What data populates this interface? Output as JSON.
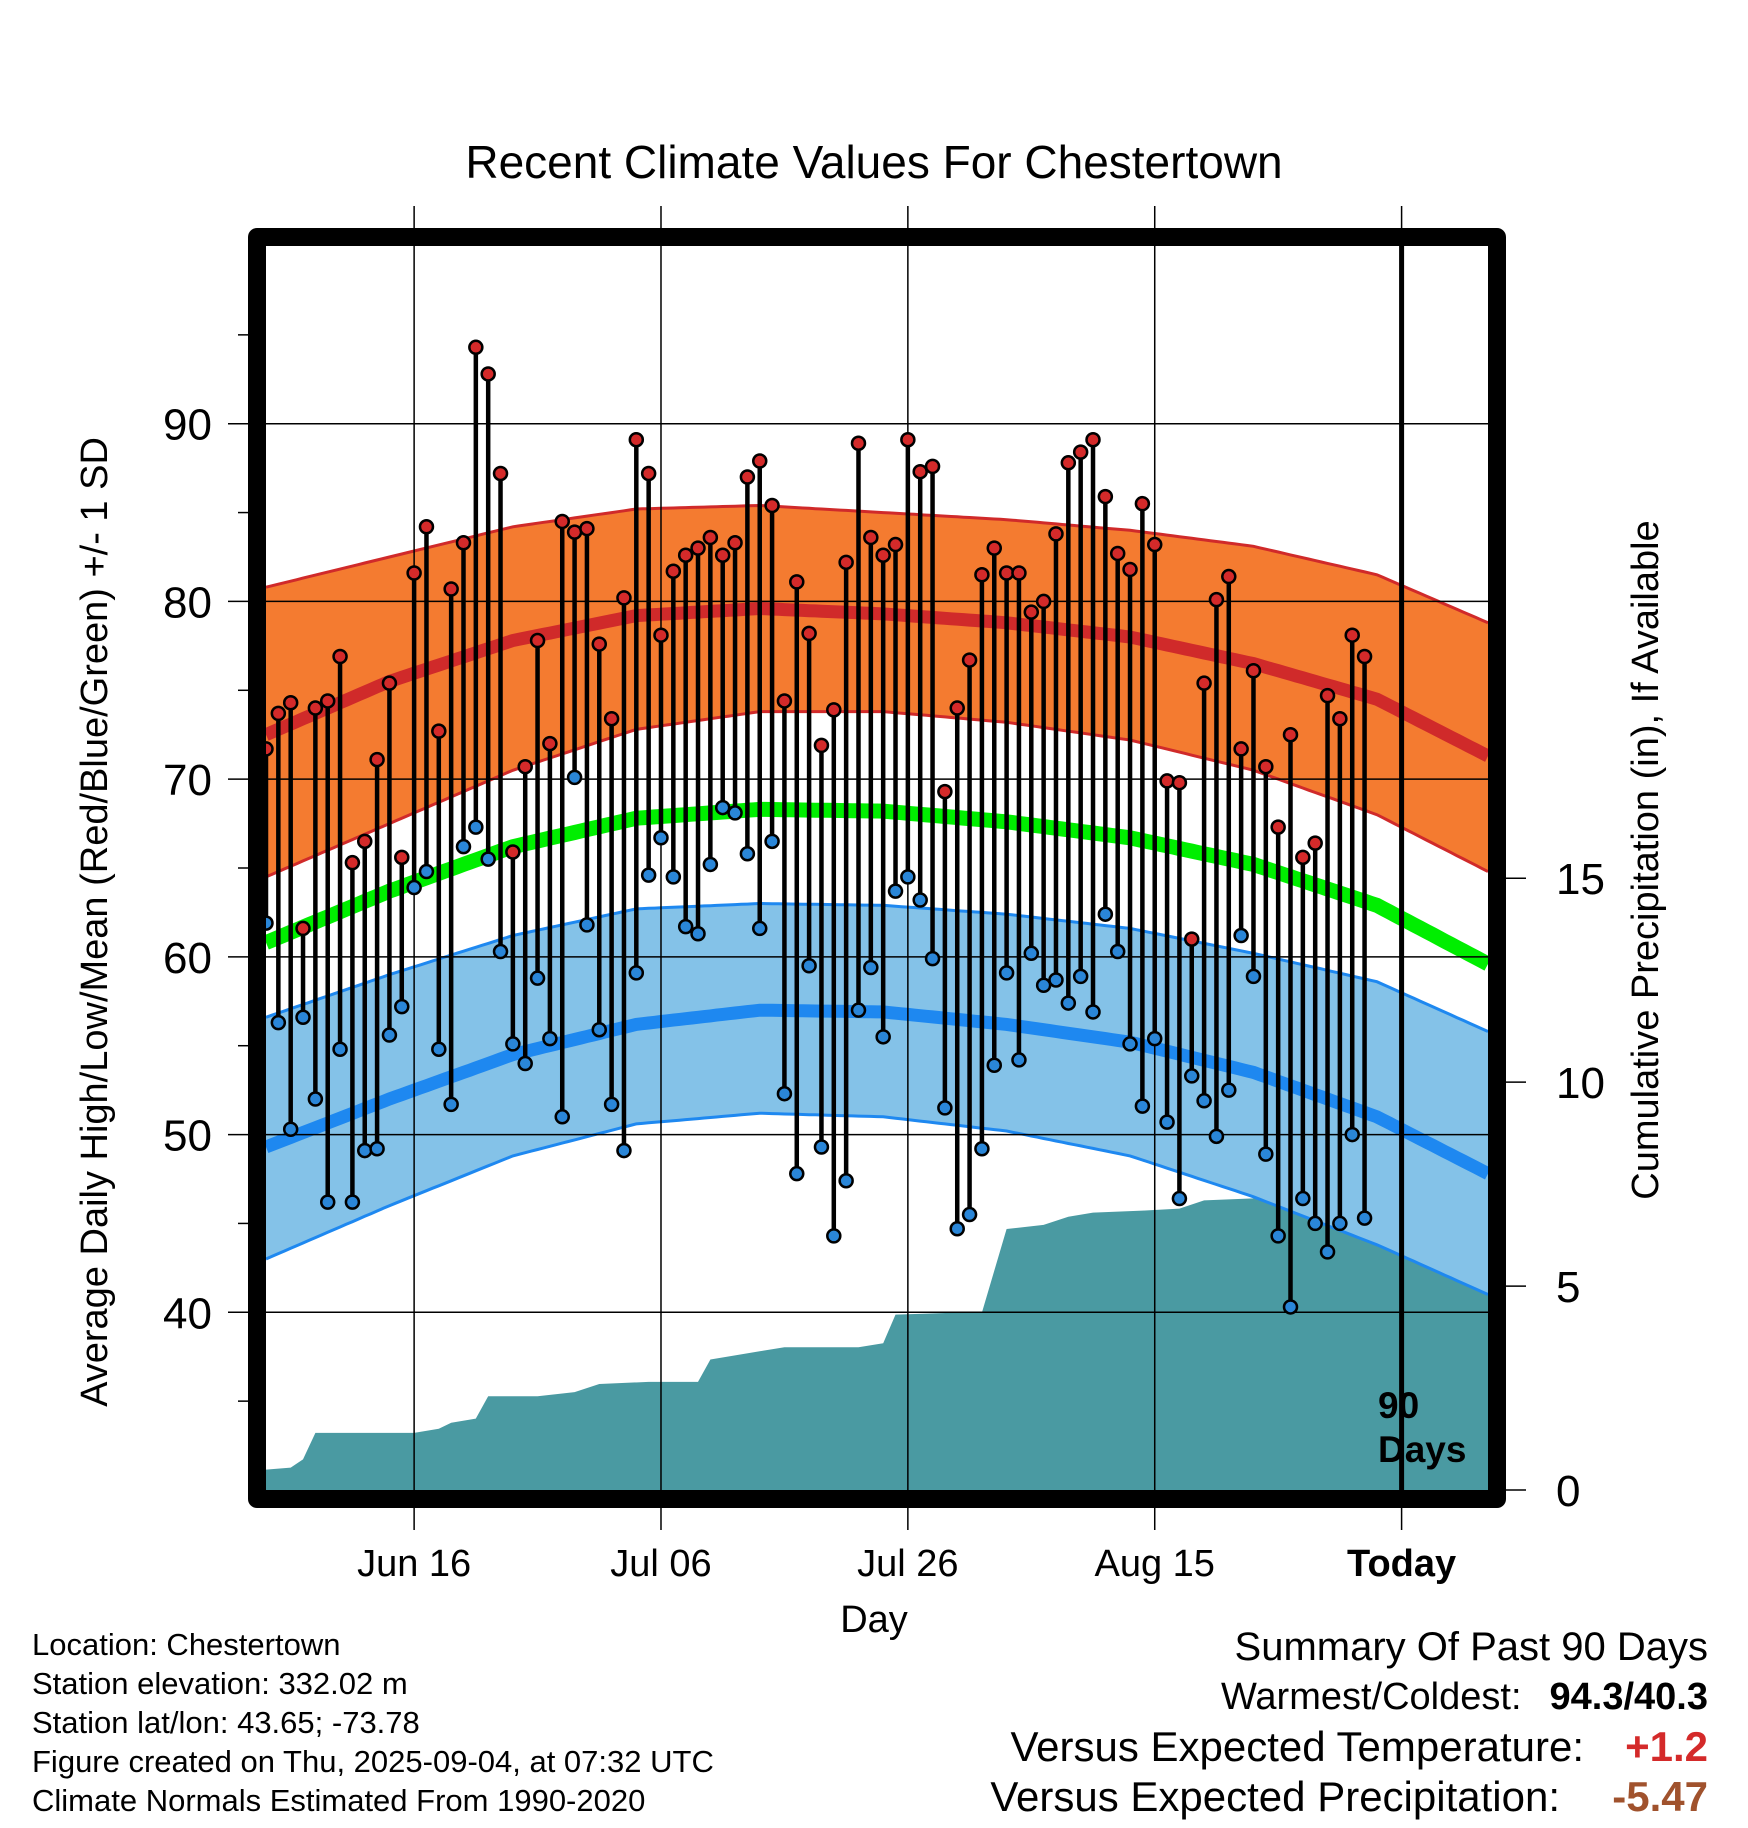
{
  "title": "Recent Climate Values For Chestertown",
  "y_left_label": "Average Daily High/Low/Mean (Red/Blue/Green) +/- 1 SD",
  "y_right_label": "Cumulative Precipitation (in), If Available",
  "x_label": "Day",
  "period_label_line1": "90",
  "period_label_line2": "Days",
  "info": {
    "location": "Location: Chestertown",
    "elevation": "Station elevation: 332.02 m",
    "latlon": "Station lat/lon: 43.65; -73.78",
    "created": "Figure created on Thu, 2025-09-04, at 07:32 UTC",
    "normals": "Climate Normals Estimated From 1990-2020"
  },
  "summary": {
    "title": "Summary Of Past 90 Days",
    "warmest_label": "Warmest/Coldest:",
    "warmest_value": "94.3/40.3",
    "temp_label": "Versus Expected Temperature:",
    "temp_value": "+1.2",
    "precip_label": "Versus Expected Precipitation:",
    "precip_value": "-5.47"
  },
  "colors": {
    "high_band": "#f47b30",
    "high_line": "#d02a2a",
    "low_band": "#84c2e8",
    "low_line": "#1e88f0",
    "mean_line": "#00ee00",
    "precip_fill": "#4a9aa2",
    "high_dot": "#d42a2a",
    "low_dot": "#2a86d8",
    "warm_value": "#d42a2a",
    "precip_value": "#a0522d"
  },
  "chart_data": {
    "type": "line",
    "x_start_day": -90,
    "x_end_day": 9,
    "x_ticks": [
      {
        "day": -78,
        "label": "Jun 16"
      },
      {
        "day": -58,
        "label": "Jul 06"
      },
      {
        "day": -38,
        "label": "Jul 26"
      },
      {
        "day": -18,
        "label": "Aug 15"
      },
      {
        "day": 2,
        "label": "Today",
        "bold": true
      }
    ],
    "today_day": 2,
    "y_left_range": [
      30,
      100
    ],
    "y_left_ticks": [
      40,
      50,
      60,
      70,
      80,
      90
    ],
    "y_right_range": [
      0,
      30.5
    ],
    "y_right_ticks": [
      0,
      5,
      10,
      15
    ],
    "normal_high_mean": [
      {
        "day": -90,
        "value": 72.5
      },
      {
        "day": -80,
        "value": 75.5
      },
      {
        "day": -70,
        "value": 77.8
      },
      {
        "day": -60,
        "value": 79.2
      },
      {
        "day": -50,
        "value": 79.6
      },
      {
        "day": -40,
        "value": 79.3
      },
      {
        "day": -30,
        "value": 78.8
      },
      {
        "day": -20,
        "value": 78.0
      },
      {
        "day": -10,
        "value": 76.5
      },
      {
        "day": 0,
        "value": 74.5
      },
      {
        "day": 9,
        "value": 71.3
      }
    ],
    "normal_high_upper": [
      {
        "day": -90,
        "value": 80.8
      },
      {
        "day": -80,
        "value": 82.5
      },
      {
        "day": -70,
        "value": 84.2
      },
      {
        "day": -60,
        "value": 85.2
      },
      {
        "day": -50,
        "value": 85.4
      },
      {
        "day": -40,
        "value": 85.0
      },
      {
        "day": -30,
        "value": 84.6
      },
      {
        "day": -20,
        "value": 84.0
      },
      {
        "day": -10,
        "value": 83.1
      },
      {
        "day": 0,
        "value": 81.5
      },
      {
        "day": 9,
        "value": 78.8
      }
    ],
    "normal_high_lower": [
      {
        "day": -90,
        "value": 64.5
      },
      {
        "day": -80,
        "value": 67.5
      },
      {
        "day": -70,
        "value": 70.5
      },
      {
        "day": -60,
        "value": 72.8
      },
      {
        "day": -50,
        "value": 73.8
      },
      {
        "day": -40,
        "value": 73.8
      },
      {
        "day": -30,
        "value": 73.2
      },
      {
        "day": -20,
        "value": 72.2
      },
      {
        "day": -10,
        "value": 70.5
      },
      {
        "day": 0,
        "value": 68.0
      },
      {
        "day": 9,
        "value": 64.8
      }
    ],
    "normal_low_mean": [
      {
        "day": -90,
        "value": 49.3
      },
      {
        "day": -80,
        "value": 52.0
      },
      {
        "day": -70,
        "value": 54.5
      },
      {
        "day": -60,
        "value": 56.2
      },
      {
        "day": -50,
        "value": 57.0
      },
      {
        "day": -40,
        "value": 56.9
      },
      {
        "day": -30,
        "value": 56.2
      },
      {
        "day": -20,
        "value": 55.2
      },
      {
        "day": -10,
        "value": 53.5
      },
      {
        "day": 0,
        "value": 51.0
      },
      {
        "day": 9,
        "value": 47.8
      }
    ],
    "normal_low_upper": [
      {
        "day": -90,
        "value": 56.6
      },
      {
        "day": -80,
        "value": 59.0
      },
      {
        "day": -70,
        "value": 61.2
      },
      {
        "day": -60,
        "value": 62.7
      },
      {
        "day": -50,
        "value": 63.0
      },
      {
        "day": -40,
        "value": 62.9
      },
      {
        "day": -30,
        "value": 62.4
      },
      {
        "day": -20,
        "value": 61.6
      },
      {
        "day": -10,
        "value": 60.2
      },
      {
        "day": 0,
        "value": 58.6
      },
      {
        "day": 9,
        "value": 55.8
      }
    ],
    "normal_low_lower": [
      {
        "day": -90,
        "value": 43.0
      },
      {
        "day": -80,
        "value": 46.0
      },
      {
        "day": -70,
        "value": 48.8
      },
      {
        "day": -60,
        "value": 50.6
      },
      {
        "day": -50,
        "value": 51.2
      },
      {
        "day": -40,
        "value": 51.0
      },
      {
        "day": -30,
        "value": 50.2
      },
      {
        "day": -20,
        "value": 48.8
      },
      {
        "day": -10,
        "value": 46.5
      },
      {
        "day": 0,
        "value": 43.8
      },
      {
        "day": 9,
        "value": 41.0
      }
    ],
    "normal_mean": [
      {
        "day": -90,
        "value": 60.8
      },
      {
        "day": -80,
        "value": 63.7
      },
      {
        "day": -70,
        "value": 66.2
      },
      {
        "day": -60,
        "value": 67.8
      },
      {
        "day": -50,
        "value": 68.3
      },
      {
        "day": -40,
        "value": 68.2
      },
      {
        "day": -30,
        "value": 67.6
      },
      {
        "day": -20,
        "value": 66.7
      },
      {
        "day": -10,
        "value": 65.2
      },
      {
        "day": 0,
        "value": 62.9
      },
      {
        "day": 9,
        "value": 59.6
      }
    ],
    "daily_high": [
      71.7,
      73.7,
      74.3,
      61.6,
      74.0,
      74.4,
      76.9,
      65.3,
      66.5,
      71.1,
      75.4,
      65.6,
      81.6,
      84.2,
      72.7,
      80.7,
      83.3,
      94.3,
      92.8,
      87.2,
      65.9,
      70.7,
      77.8,
      72.0,
      84.5,
      83.9,
      84.1,
      77.6,
      73.4,
      80.2,
      89.1,
      87.2,
      78.1,
      81.7,
      82.6,
      83.0,
      83.6,
      82.6,
      83.3,
      87.0,
      87.9,
      85.4,
      74.4,
      81.1,
      78.2,
      71.9,
      73.9,
      82.2,
      88.9,
      83.6,
      82.6,
      83.2,
      89.1,
      87.3,
      87.6,
      69.3,
      74.0,
      76.7,
      81.5,
      83.0,
      81.6,
      81.6,
      79.4,
      80.0,
      83.8,
      87.8,
      88.4,
      89.1,
      85.9,
      82.7,
      81.8,
      85.5,
      83.2,
      69.9,
      69.8,
      61.0,
      75.4,
      80.1,
      81.4,
      71.7,
      76.1,
      70.7,
      67.3,
      72.5,
      65.6,
      66.4,
      74.7,
      73.4,
      78.1,
      76.9
    ],
    "daily_low": [
      61.9,
      56.3,
      50.3,
      56.6,
      52.0,
      46.2,
      54.8,
      46.2,
      49.1,
      49.2,
      55.6,
      57.2,
      63.9,
      64.8,
      54.8,
      51.7,
      66.2,
      67.3,
      65.5,
      60.3,
      55.1,
      54.0,
      58.8,
      55.4,
      51.0,
      70.1,
      61.8,
      55.9,
      51.7,
      49.1,
      59.1,
      64.6,
      66.7,
      64.5,
      61.7,
      61.3,
      65.2,
      68.4,
      68.1,
      65.8,
      61.6,
      66.5,
      52.3,
      47.8,
      59.5,
      49.3,
      44.3,
      47.4,
      57.0,
      59.4,
      55.5,
      63.7,
      64.5,
      63.2,
      59.9,
      51.5,
      44.7,
      45.5,
      49.2,
      53.9,
      59.1,
      54.2,
      60.2,
      58.4,
      58.7,
      57.4,
      58.9,
      56.9,
      62.4,
      60.3,
      55.1,
      51.6,
      55.4,
      50.7,
      46.4,
      53.3,
      51.9,
      49.9,
      52.5,
      61.2,
      58.9,
      48.9,
      44.3,
      40.3,
      46.4,
      45.0,
      43.4,
      45.0,
      50.0,
      45.3
    ],
    "cumulative_precip": [
      {
        "day": -90,
        "value": 0.5
      },
      {
        "day": -88,
        "value": 0.55
      },
      {
        "day": -87,
        "value": 0.75
      },
      {
        "day": -86,
        "value": 1.4
      },
      {
        "day": -82,
        "value": 1.4
      },
      {
        "day": -78,
        "value": 1.4
      },
      {
        "day": -76,
        "value": 1.5
      },
      {
        "day": -75,
        "value": 1.65
      },
      {
        "day": -73,
        "value": 1.75
      },
      {
        "day": -72,
        "value": 2.3
      },
      {
        "day": -68,
        "value": 2.3
      },
      {
        "day": -65,
        "value": 2.4
      },
      {
        "day": -63,
        "value": 2.6
      },
      {
        "day": -59,
        "value": 2.65
      },
      {
        "day": -55,
        "value": 2.65
      },
      {
        "day": -54,
        "value": 3.2
      },
      {
        "day": -52,
        "value": 3.3
      },
      {
        "day": -50,
        "value": 3.4
      },
      {
        "day": -48,
        "value": 3.5
      },
      {
        "day": -42,
        "value": 3.5
      },
      {
        "day": -40,
        "value": 3.6
      },
      {
        "day": -39,
        "value": 4.3
      },
      {
        "day": -34,
        "value": 4.35
      },
      {
        "day": -32,
        "value": 4.35
      },
      {
        "day": -30,
        "value": 6.4
      },
      {
        "day": -27,
        "value": 6.5
      },
      {
        "day": -25,
        "value": 6.7
      },
      {
        "day": -23,
        "value": 6.8
      },
      {
        "day": -19,
        "value": 6.85
      },
      {
        "day": -16,
        "value": 6.9
      },
      {
        "day": -14,
        "value": 7.1
      },
      {
        "day": -10,
        "value": 7.15
      },
      {
        "day": -6,
        "value": 7.2
      },
      {
        "day": -4,
        "value": 7.55
      },
      {
        "day": 0,
        "value": 7.55
      },
      {
        "day": 9,
        "value": 7.55
      }
    ]
  }
}
